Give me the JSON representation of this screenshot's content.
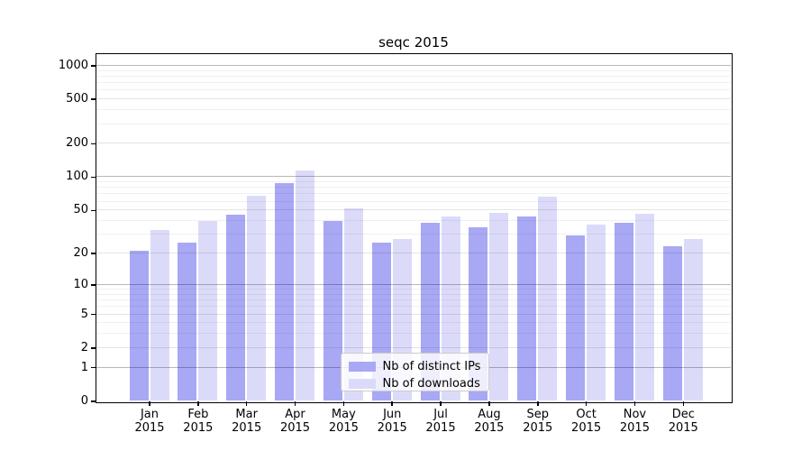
{
  "title": "seqc 2015",
  "chart_data": {
    "type": "bar",
    "title": "seqc 2015",
    "categories": [
      "Jan 2015",
      "Feb 2015",
      "Mar 2015",
      "Apr 2015",
      "May 2015",
      "Jun 2015",
      "Jul 2015",
      "Aug 2015",
      "Sep 2015",
      "Oct 2015",
      "Nov 2015",
      "Dec 2015"
    ],
    "month_labels": [
      "Jan",
      "Feb",
      "Mar",
      "Apr",
      "May",
      "Jun",
      "Jul",
      "Aug",
      "Sep",
      "Oct",
      "Nov",
      "Dec"
    ],
    "year_label": "2015",
    "series": [
      {
        "name": "Nb of distinct IPs",
        "color": "#a8a8f5",
        "values": [
          21,
          25,
          45,
          87,
          40,
          25,
          38,
          35,
          44,
          29,
          38,
          23
        ]
      },
      {
        "name": "Nb of downloads",
        "color": "#dbdbf9",
        "values": [
          33,
          40,
          67,
          115,
          52,
          27,
          44,
          47,
          66,
          37,
          46,
          27
        ]
      }
    ],
    "y_axis": {
      "scale": "log10(1+x)",
      "tick_values": [
        0,
        1,
        2,
        5,
        10,
        20,
        50,
        100,
        200,
        500,
        1000
      ],
      "decade_ticks": [
        1,
        10,
        100,
        1000
      ],
      "minor_gridlines": [
        3,
        4,
        6,
        7,
        8,
        9,
        30,
        40,
        60,
        70,
        80,
        90,
        300,
        400,
        600,
        700,
        800,
        900
      ],
      "range": [
        0,
        1270
      ]
    },
    "xlabel": "",
    "ylabel": "",
    "grid": true,
    "legend_position": "lower center"
  },
  "colors": {
    "background": "#ffffff",
    "spine": "#000000",
    "decade_grid": "rgba(0,0,0,0.28)",
    "labeled_grid": "rgba(0,0,0,0.105)",
    "minor_grid": "rgba(0,0,0,0.06)",
    "legend_border": "#cccccc",
    "legend_background": "rgba(255,255,255,0.8)"
  }
}
